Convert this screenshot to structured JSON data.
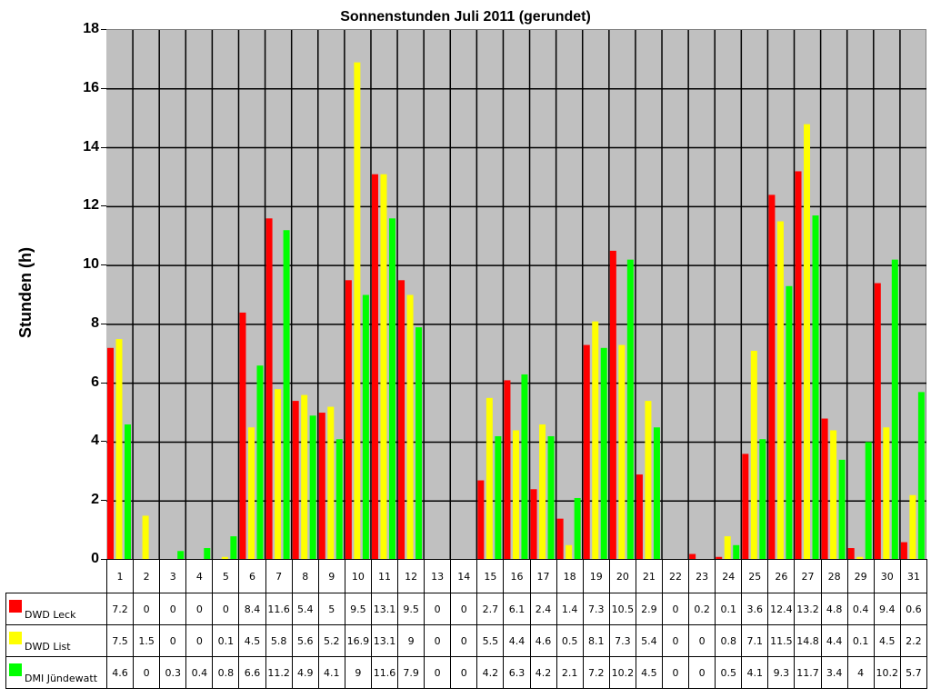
{
  "chart_data": {
    "type": "bar",
    "title": "Sonnenstunden Juli 2011 (gerundet)",
    "xlabel": "",
    "ylabel": "Stunden (h)",
    "ylim": [
      0,
      18
    ],
    "yticks": [
      0,
      2,
      4,
      6,
      8,
      10,
      12,
      14,
      16,
      18
    ],
    "grid": true,
    "legend_position": "data-table-left",
    "categories": [
      "1",
      "2",
      "3",
      "4",
      "5",
      "6",
      "7",
      "8",
      "9",
      "10",
      "11",
      "12",
      "13",
      "14",
      "15",
      "16",
      "17",
      "18",
      "19",
      "20",
      "21",
      "22",
      "23",
      "24",
      "25",
      "26",
      "27",
      "28",
      "29",
      "30",
      "31"
    ],
    "series": [
      {
        "name": "DWD Leck",
        "color": "#ff0000",
        "values": [
          7.2,
          0,
          0,
          0,
          0,
          8.4,
          11.6,
          5.4,
          5,
          9.5,
          13.1,
          9.5,
          0,
          0,
          2.7,
          6.1,
          2.4,
          1.4,
          7.3,
          10.5,
          2.9,
          0,
          0.2,
          0.1,
          3.6,
          12.4,
          13.2,
          4.8,
          0.4,
          9.4,
          0.6
        ]
      },
      {
        "name": "DWD List",
        "color": "#ffff00",
        "values": [
          7.5,
          1.5,
          0,
          0,
          0.1,
          4.5,
          5.8,
          5.6,
          5.2,
          16.9,
          13.1,
          9,
          0,
          0,
          5.5,
          4.4,
          4.6,
          0.5,
          8.1,
          7.3,
          5.4,
          0,
          0,
          0.8,
          7.1,
          11.5,
          14.8,
          4.4,
          0.1,
          4.5,
          2.2
        ]
      },
      {
        "name": "DMI Jündewatt",
        "color": "#00ff00",
        "values": [
          4.6,
          0,
          0.3,
          0.4,
          0.8,
          6.6,
          11.2,
          4.9,
          4.1,
          9,
          11.6,
          7.9,
          0,
          0,
          4.2,
          6.3,
          4.2,
          2.1,
          7.2,
          10.2,
          4.5,
          0,
          0,
          0.5,
          4.1,
          9.3,
          11.7,
          3.4,
          4,
          10.2,
          5.7
        ]
      }
    ],
    "bar_heights_note": "small nonzero bars drawn for displayed zero values on days 3 (Leck), 4 (Leck)"
  },
  "colors": {
    "plot_background": "#c0c0c0",
    "grid": "#000000"
  }
}
